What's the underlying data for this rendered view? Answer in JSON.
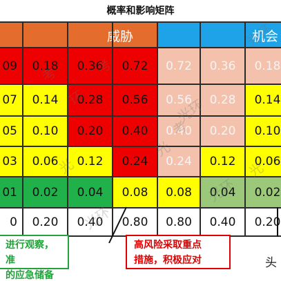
{
  "title": "概率和影响矩阵",
  "bands": [
    {
      "label": "威胁",
      "color": "#e46c2d"
    },
    {
      "label": "机会",
      "color": "#1fa3e8"
    }
  ],
  "colors": {
    "red": "#ee0000",
    "yellow": "#ffff00",
    "green": "#21b14a",
    "pink": "#f4c2ac",
    "light_green": "#9cc979",
    "white": "#ffffff"
  },
  "chart_data": {
    "type": "table",
    "row_labels": [
      "09",
      "07",
      "05",
      "03",
      "01",
      "0"
    ],
    "rows": [
      {
        "cells": [
          {
            "value": "0.18",
            "color": "red"
          },
          {
            "value": "0.36",
            "color": "red"
          },
          {
            "value": "0.72",
            "color": "red"
          },
          {
            "value": "0.72",
            "color": "pink"
          },
          {
            "value": "0.36",
            "color": "pink"
          },
          {
            "value": "0.18",
            "color": "pink"
          },
          {
            "value": "",
            "color": "pink"
          }
        ]
      },
      {
        "cells": [
          {
            "value": "0.14",
            "color": "yellow"
          },
          {
            "value": "0.28",
            "color": "red"
          },
          {
            "value": "0.56",
            "color": "red"
          },
          {
            "value": "0.56",
            "color": "pink"
          },
          {
            "value": "0.28",
            "color": "pink"
          },
          {
            "value": "0.14",
            "color": "yellow"
          },
          {
            "value": "",
            "color": "yellow"
          }
        ]
      },
      {
        "cells": [
          {
            "value": "0.10",
            "color": "yellow"
          },
          {
            "value": "0.20",
            "color": "red"
          },
          {
            "value": "0.40",
            "color": "red"
          },
          {
            "value": "0.40",
            "color": "pink"
          },
          {
            "value": "0.20",
            "color": "pink"
          },
          {
            "value": "0.10",
            "color": "yellow"
          },
          {
            "value": "",
            "color": "yellow"
          }
        ]
      },
      {
        "cells": [
          {
            "value": "0.06",
            "color": "yellow"
          },
          {
            "value": "0.12",
            "color": "yellow"
          },
          {
            "value": "0.24",
            "color": "red"
          },
          {
            "value": "0.24",
            "color": "pink"
          },
          {
            "value": "0.12",
            "color": "yellow"
          },
          {
            "value": "0.06",
            "color": "yellow"
          },
          {
            "value": "",
            "color": "yellow"
          }
        ]
      },
      {
        "cells": [
          {
            "value": "0.02",
            "color": "green"
          },
          {
            "value": "0.04",
            "color": "green"
          },
          {
            "value": "0.08",
            "color": "yellow"
          },
          {
            "value": "0.08",
            "color": "yellow"
          },
          {
            "value": "0.04",
            "color": "light_green"
          },
          {
            "value": "0.02",
            "color": "light_green"
          },
          {
            "value": "",
            "color": "light_green"
          }
        ]
      },
      {
        "cells": [
          {
            "value": "0.20",
            "color": "white"
          },
          {
            "value": "0.40",
            "color": "white"
          },
          {
            "value": "0.80",
            "color": "white"
          },
          {
            "value": "0.80",
            "color": "white"
          },
          {
            "value": "0.40",
            "color": "white"
          },
          {
            "value": "0.20",
            "color": "white"
          },
          {
            "value": "",
            "color": "white"
          }
        ]
      }
    ]
  },
  "notes": {
    "left_line1": "进行观察，准",
    "left_line2": "的应急储备",
    "center_line1": "高风险采取重点",
    "center_line2": "措施，积极应对"
  },
  "watermark": {
    "brand": "头",
    "marks": [
      "考",
      "环",
      "光",
      "光环",
      "考",
      "光环",
      "光",
      "考",
      "光环",
      "光环",
      "光"
    ]
  }
}
